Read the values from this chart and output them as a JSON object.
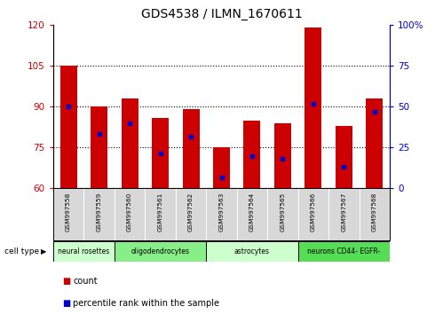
{
  "title": "GDS4538 / ILMN_1670611",
  "samples": [
    "GSM997558",
    "GSM997559",
    "GSM997560",
    "GSM997561",
    "GSM997562",
    "GSM997563",
    "GSM997564",
    "GSM997565",
    "GSM997566",
    "GSM997567",
    "GSM997568"
  ],
  "bar_bottoms": [
    60,
    60,
    60,
    60,
    60,
    60,
    60,
    60,
    60,
    60,
    60
  ],
  "bar_tops": [
    105,
    90,
    93,
    86,
    89,
    75,
    85,
    84,
    119,
    83,
    93
  ],
  "blue_positions": [
    90,
    80,
    84,
    73,
    79,
    64,
    72,
    71,
    91,
    68,
    88
  ],
  "ylim_left": [
    60,
    120
  ],
  "ylim_right": [
    0,
    100
  ],
  "yticks_left": [
    60,
    75,
    90,
    105,
    120
  ],
  "yticks_right": [
    0,
    25,
    50,
    75,
    100
  ],
  "bar_color": "#cc0000",
  "blue_color": "#0000cc",
  "bar_width": 0.55,
  "cell_types": [
    {
      "label": "neural rosettes",
      "start": 0,
      "end": 2,
      "color": "#ccffcc"
    },
    {
      "label": "oligodendrocytes",
      "start": 2,
      "end": 5,
      "color": "#88ee88"
    },
    {
      "label": "astrocytes",
      "start": 5,
      "end": 8,
      "color": "#ccffcc"
    },
    {
      "label": "neurons CD44- EGFR-",
      "start": 8,
      "end": 11,
      "color": "#55dd55"
    }
  ],
  "cell_type_label": "cell type",
  "legend_count_label": "count",
  "legend_percentile_label": "percentile rank within the sample",
  "background_color": "#ffffff",
  "tick_color_left": "#cc0000",
  "tick_color_right": "#0000cc",
  "label_bg": "#d8d8d8"
}
